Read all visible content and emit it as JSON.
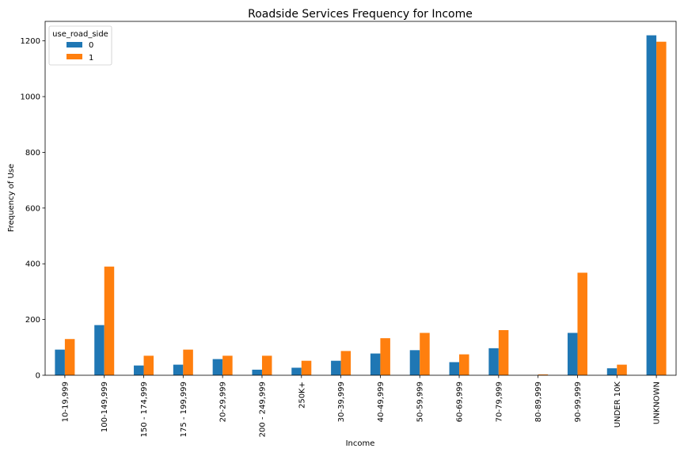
{
  "chart_data": {
    "type": "bar",
    "title": "Roadside Services Frequency for Income",
    "xlabel": "Income",
    "ylabel": "Frequency of Use",
    "ylim": [
      0,
      1270
    ],
    "yticks": [
      0,
      200,
      400,
      600,
      800,
      1000,
      1200
    ],
    "grid": false,
    "legend": {
      "title": "use_road_side",
      "placement": "top-left"
    },
    "categories": [
      "10-19,999",
      "100-149,999",
      "150 - 174,999",
      "175 - 199,999",
      "20-29,999",
      "200 - 249,999",
      "250K+",
      "30-39,999",
      "40-49,999",
      "50-59,999",
      "60-69,999",
      "70-79,999",
      "80-89,999",
      "90-99,999",
      "UNDER 10K",
      "UNKNOWN"
    ],
    "series": [
      {
        "name": "0",
        "color": "#1f77b4",
        "values": [
          92,
          180,
          35,
          38,
          58,
          20,
          27,
          52,
          78,
          90,
          47,
          97,
          0,
          152,
          25,
          1220
        ]
      },
      {
        "name": "1",
        "color": "#ff7f0e",
        "values": [
          130,
          390,
          70,
          92,
          70,
          70,
          52,
          87,
          133,
          152,
          75,
          162,
          3,
          368,
          38,
          1197
        ]
      }
    ]
  }
}
